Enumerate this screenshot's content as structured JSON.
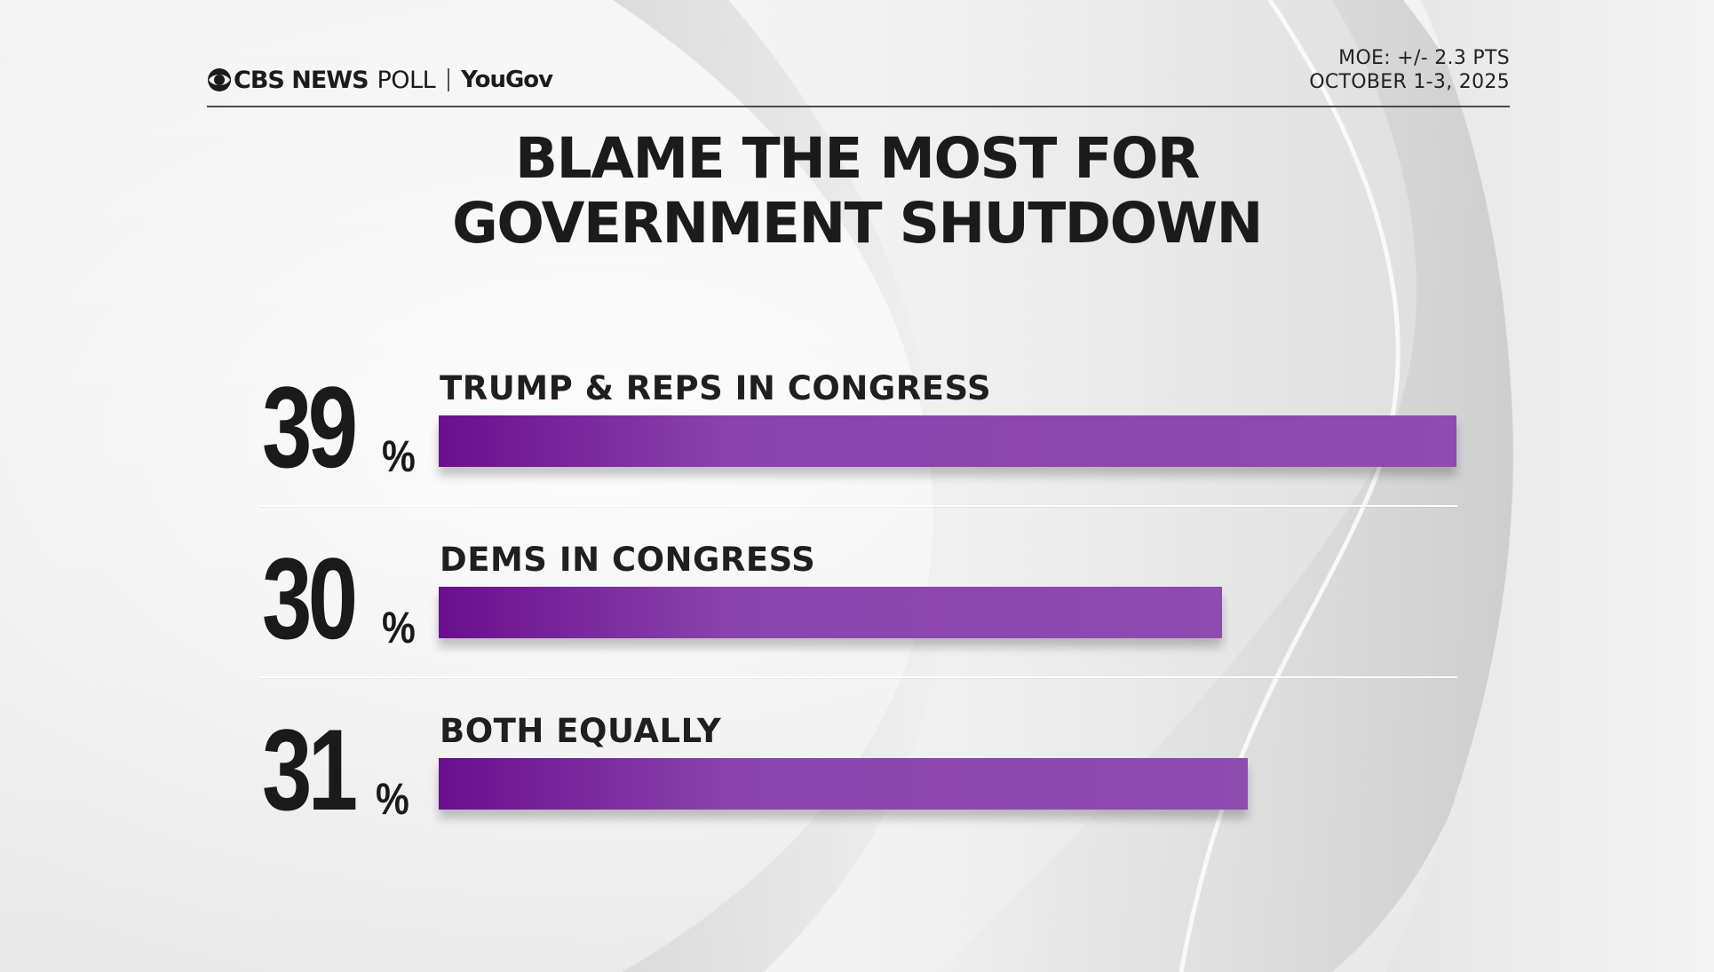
{
  "header": {
    "brand_cbs": "CBS NEWS",
    "brand_poll": "POLL",
    "brand_partner": "YouGov",
    "moe": "MOE: +/- 2.3 PTS",
    "dates": "OCTOBER 1-3, 2025"
  },
  "colors": {
    "bar_start": "#6a0f8e",
    "bar_mid": "#8a43ad",
    "bar_end": "#8e4bb0",
    "text": "#1b1b1b"
  },
  "icons": [
    "cbs-eye-icon"
  ],
  "chart_data": {
    "type": "bar",
    "orientation": "horizontal",
    "title": "BLAME THE MOST FOR GOVERNMENT SHUTDOWN",
    "title_lines": [
      "BLAME THE MOST FOR",
      "GOVERNMENT SHUTDOWN"
    ],
    "categories": [
      "TRUMP & REPS IN CONGRESS",
      "DEMS IN CONGRESS",
      "BOTH EQUALLY"
    ],
    "values": [
      39,
      30,
      31
    ],
    "value_labels": [
      "39",
      "30",
      "31"
    ],
    "unit": "%",
    "xlim": [
      0,
      39
    ],
    "grid": false,
    "legend": "none"
  }
}
